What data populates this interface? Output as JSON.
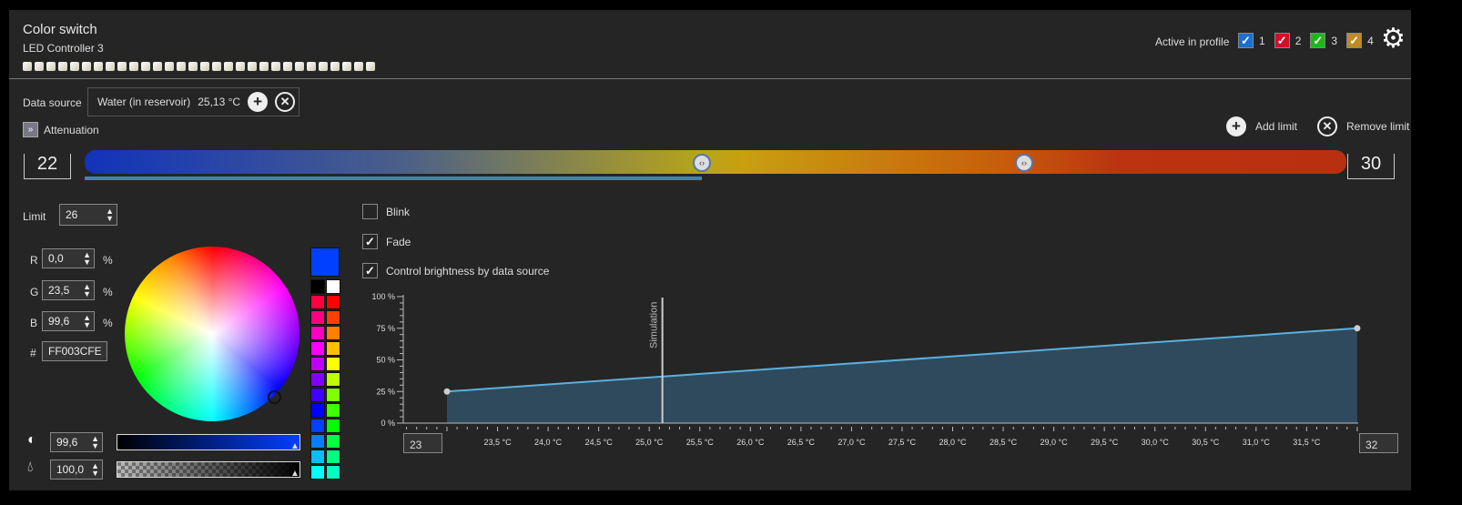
{
  "header": {
    "title": "Color switch",
    "subtitle": "LED Controller 3",
    "led_count": 30,
    "active_label": "Active in profile",
    "profiles": [
      {
        "label": "1",
        "color": "#1a6fd0",
        "checked": true
      },
      {
        "label": "2",
        "color": "#d0102a",
        "checked": true
      },
      {
        "label": "3",
        "color": "#1bb81b",
        "checked": true
      },
      {
        "label": "4",
        "color": "#c08a25",
        "checked": true
      }
    ]
  },
  "datasource": {
    "label": "Data source",
    "name": "Water (in reservoir)",
    "value": "25,13 °C"
  },
  "attenuation_label": "Attenuation",
  "limits": {
    "add": "Add limit",
    "remove": "Remove limit",
    "min": "22",
    "max": "30"
  },
  "limit": {
    "label": "Limit",
    "value": "26"
  },
  "rgb": {
    "r_label": "R",
    "r": "0,0",
    "g_label": "G",
    "g": "23,5",
    "b_label": "B",
    "b": "99,6",
    "unit": "%",
    "hex_label": "#",
    "hex": "FF003CFE"
  },
  "brightness": "99,6",
  "opacity": "100,0",
  "current_color": "#0040fe",
  "swatches_left": [
    "#000000",
    "#ff0040",
    "#ff0080",
    "#ff00c0",
    "#ff00ff",
    "#c000ff",
    "#8000ff",
    "#4000ff",
    "#0000ff",
    "#0040ff",
    "#0080ff",
    "#00c0ff",
    "#00ffff"
  ],
  "swatches_right": [
    "#ffffff",
    "#ff0000",
    "#ff4000",
    "#ff8000",
    "#ffc000",
    "#ffff00",
    "#c0ff00",
    "#80ff00",
    "#40ff00",
    "#00ff00",
    "#00ff40",
    "#00ff80",
    "#00ffc0"
  ],
  "options": {
    "blink": {
      "label": "Blink",
      "checked": false
    },
    "fade": {
      "label": "Fade",
      "checked": true
    },
    "brightness": {
      "label": "Control brightness by data source",
      "checked": true
    }
  },
  "chart_data": {
    "type": "area",
    "x": [
      23,
      32
    ],
    "y": [
      25,
      75
    ],
    "xlim": [
      22.5,
      32
    ],
    "ylim": [
      0,
      100
    ],
    "yticks": [
      "0 %",
      "25 %",
      "50 %",
      "75 %",
      "100 %"
    ],
    "xticks": [
      "23,5 °C",
      "24,0 °C",
      "24,5 °C",
      "25,0 °C",
      "25,5 °C",
      "26,0 °C",
      "26,5 °C",
      "27,0 °C",
      "27,5 °C",
      "28,0 °C",
      "28,5 °C",
      "29,0 °C",
      "29,5 °C",
      "30,0 °C",
      "30,5 °C",
      "31,0 °C",
      "31,5 °C"
    ],
    "simulation_label": "Simulation",
    "simulation_x": 25.13,
    "min_input": "23",
    "max_input": "32"
  }
}
